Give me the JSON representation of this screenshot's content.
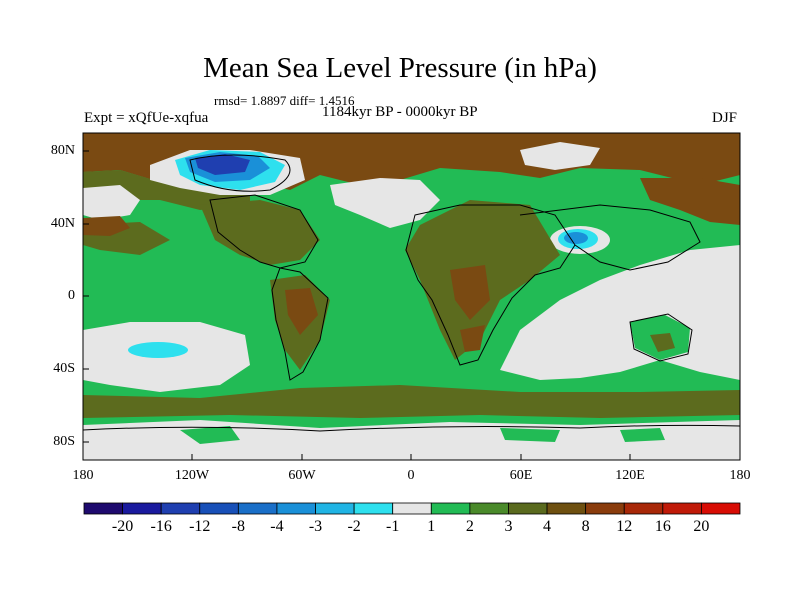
{
  "title": "Mean Sea Level Pressure (in hPa)",
  "stats_line": "rmsd= 1.8897 diff= 1.4516",
  "experiment_label": "Expt = xQfUe-xqfua",
  "period_label": "1184kyr BP - 0000kyr BP",
  "season_label": "DJF",
  "lat_ticks": [
    "80N",
    "40N",
    "0",
    "40S",
    "80S"
  ],
  "lon_ticks": [
    "180",
    "120W",
    "60W",
    "0",
    "60E",
    "120E",
    "180"
  ],
  "colorbar": {
    "labels": [
      "-20",
      "-16",
      "-12",
      "-8",
      "-4",
      "-3",
      "-2",
      "-1",
      "1",
      "2",
      "3",
      "4",
      "8",
      "12",
      "16",
      "20"
    ],
    "colors": [
      "#1e0a6e",
      "#1a1a9e",
      "#1f3fb0",
      "#1850b8",
      "#1a6fc8",
      "#1a90d8",
      "#20b4e4",
      "#2ee0ee",
      "#e6e6e6",
      "#22bb55",
      "#4a8a2a",
      "#5a6a1e",
      "#6e5010",
      "#8a3c0c",
      "#a82808",
      "#c01a08",
      "#d80c04"
    ]
  },
  "colors": {
    "ocean_green": "#22bb55",
    "olive": "#5c6b1e",
    "brown": "#7a4a12",
    "near_zero_grey": "#e6e6e6",
    "light_blue": "#2ee0ee",
    "mid_blue": "#1a90d8",
    "deep_blue": "#1f3fb0"
  }
}
